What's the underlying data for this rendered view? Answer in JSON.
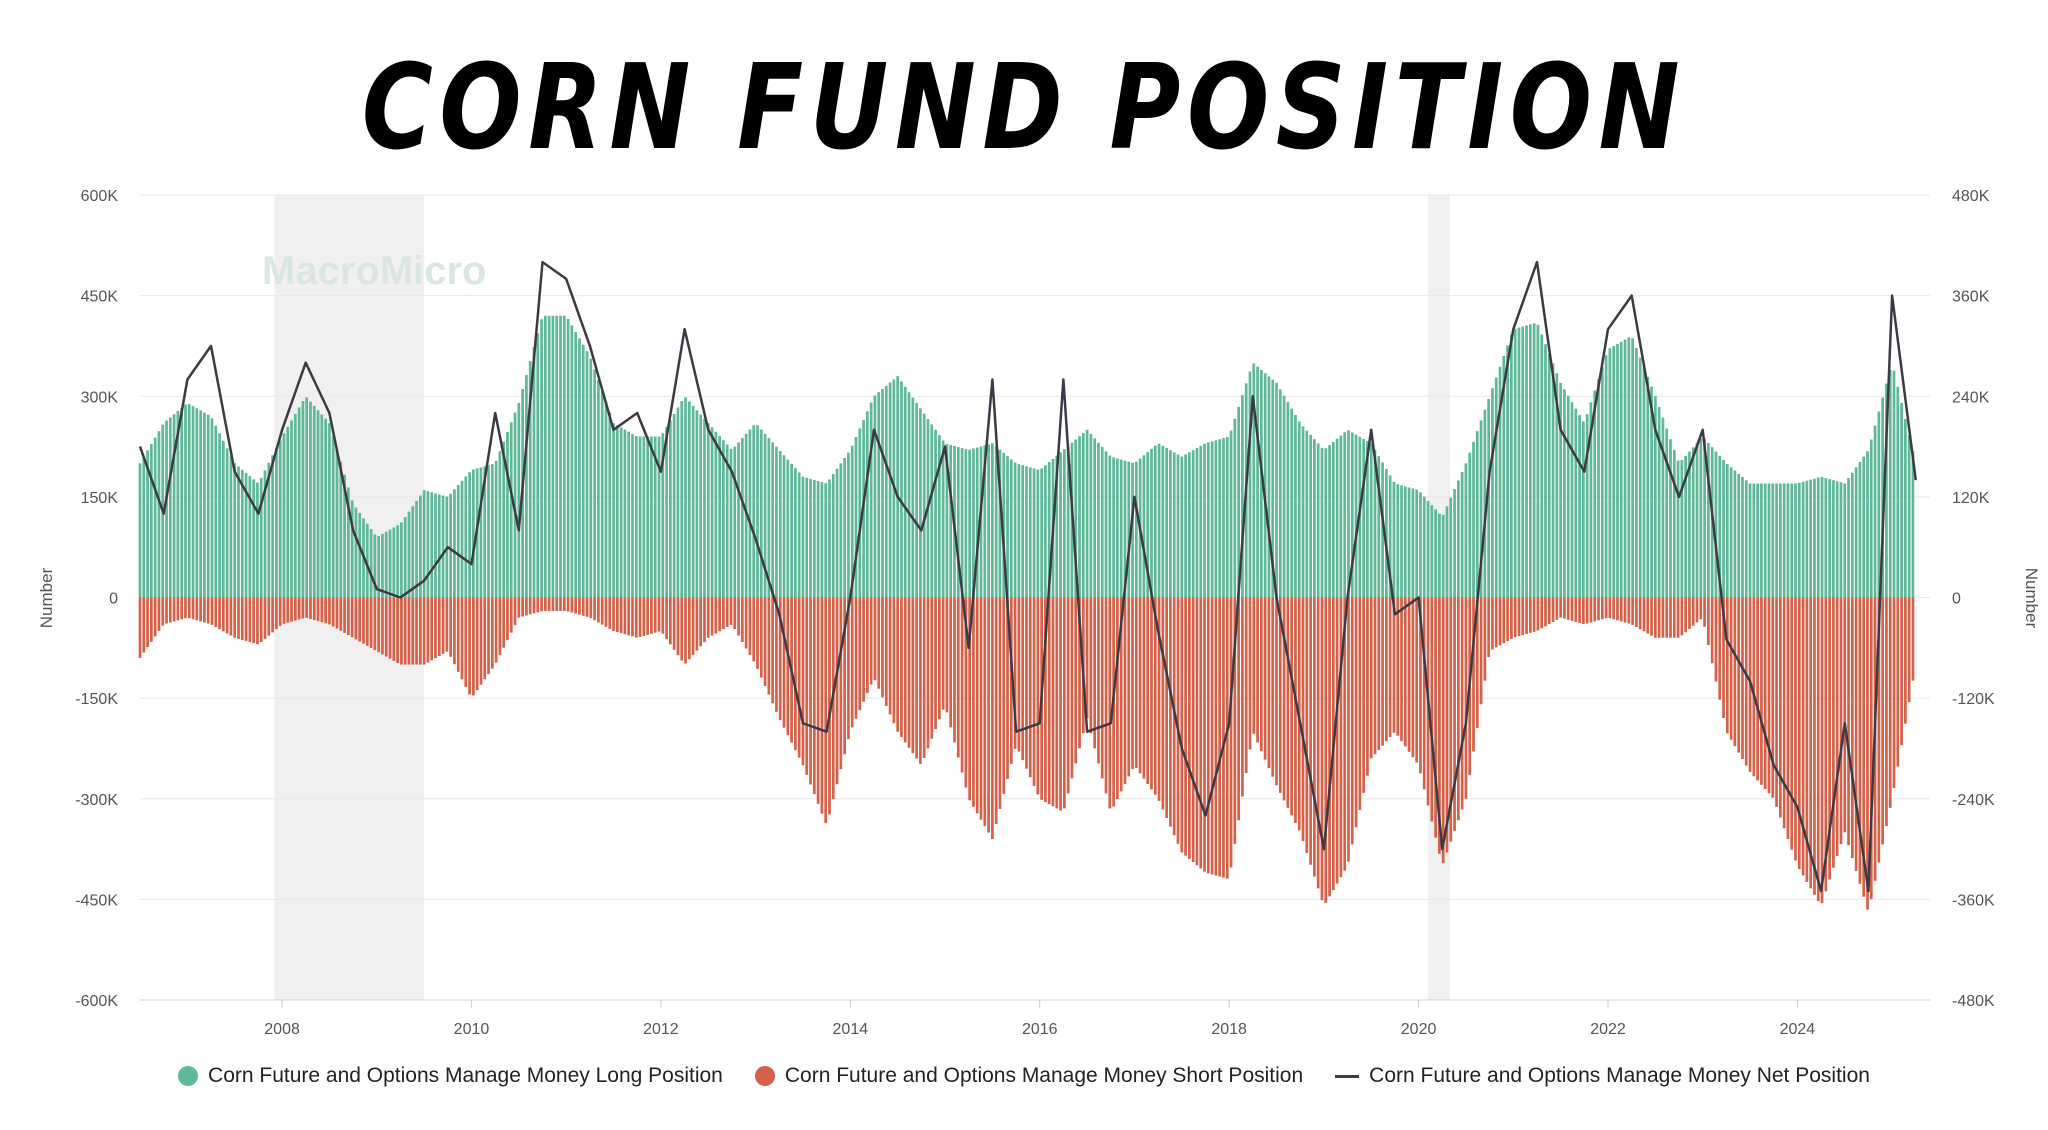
{
  "colors": {
    "long": "#5fb898",
    "short": "#d4624a",
    "net": "#3b3a45",
    "recession": "#f0f0f0",
    "grid": "#e8e8e8"
  },
  "chart_data": {
    "type": "bar",
    "title": "CORN FUND POSITION",
    "watermark": "MacroMicro",
    "ylabel_left": "Number",
    "ylabel_right": "Number",
    "ylim_left": [
      -600000,
      600000
    ],
    "ylim_right": [
      -480000,
      480000
    ],
    "yticks_left": [
      "600K",
      "450K",
      "300K",
      "150K",
      "0",
      "-150K",
      "-300K",
      "-450K",
      "-600K"
    ],
    "yticks_right": [
      "480K",
      "360K",
      "240K",
      "120K",
      "0",
      "-120K",
      "-240K",
      "-360K",
      "-480K"
    ],
    "xlim": [
      2006.5,
      2025.4
    ],
    "xticks": [
      "2008",
      "2010",
      "2012",
      "2014",
      "2016",
      "2018",
      "2020",
      "2022",
      "2024"
    ],
    "recessions": [
      [
        2007.92,
        2009.5
      ],
      [
        2020.1,
        2020.33
      ]
    ],
    "x": [
      2006.5,
      2006.75,
      2007.0,
      2007.25,
      2007.5,
      2007.75,
      2008.0,
      2008.25,
      2008.5,
      2008.75,
      2009.0,
      2009.25,
      2009.5,
      2009.75,
      2010.0,
      2010.25,
      2010.5,
      2010.75,
      2011.0,
      2011.25,
      2011.5,
      2011.75,
      2012.0,
      2012.25,
      2012.5,
      2012.75,
      2013.0,
      2013.25,
      2013.5,
      2013.75,
      2014.0,
      2014.25,
      2014.5,
      2014.75,
      2015.0,
      2015.25,
      2015.5,
      2015.75,
      2016.0,
      2016.25,
      2016.5,
      2016.75,
      2017.0,
      2017.25,
      2017.5,
      2017.75,
      2018.0,
      2018.25,
      2018.5,
      2018.75,
      2019.0,
      2019.25,
      2019.5,
      2019.75,
      2020.0,
      2020.25,
      2020.5,
      2020.75,
      2021.0,
      2021.25,
      2021.5,
      2021.75,
      2022.0,
      2022.25,
      2022.5,
      2022.75,
      2023.0,
      2023.25,
      2023.5,
      2023.75,
      2024.0,
      2024.25,
      2024.5,
      2024.75,
      2025.0,
      2025.25
    ],
    "series": [
      {
        "name": "Corn Future and Options Manage Money Long Position",
        "axis": "left",
        "values": [
          200000,
          260000,
          290000,
          270000,
          200000,
          170000,
          240000,
          300000,
          260000,
          140000,
          90000,
          110000,
          160000,
          150000,
          190000,
          200000,
          290000,
          420000,
          420000,
          360000,
          260000,
          240000,
          240000,
          300000,
          260000,
          220000,
          260000,
          220000,
          180000,
          170000,
          220000,
          300000,
          330000,
          280000,
          230000,
          220000,
          230000,
          200000,
          190000,
          220000,
          250000,
          210000,
          200000,
          230000,
          210000,
          230000,
          240000,
          350000,
          320000,
          260000,
          220000,
          250000,
          230000,
          170000,
          160000,
          120000,
          200000,
          300000,
          400000,
          410000,
          320000,
          260000,
          370000,
          390000,
          300000,
          200000,
          240000,
          200000,
          170000,
          170000,
          170000,
          180000,
          170000,
          220000,
          350000,
          200000
        ]
      },
      {
        "name": "Corn Future and Options Manage Money Short Position",
        "axis": "left",
        "values": [
          -90000,
          -40000,
          -30000,
          -40000,
          -60000,
          -70000,
          -40000,
          -30000,
          -40000,
          -60000,
          -80000,
          -100000,
          -100000,
          -80000,
          -150000,
          -100000,
          -30000,
          -20000,
          -20000,
          -30000,
          -50000,
          -60000,
          -50000,
          -100000,
          -60000,
          -40000,
          -100000,
          -180000,
          -250000,
          -340000,
          -200000,
          -120000,
          -200000,
          -250000,
          -160000,
          -300000,
          -360000,
          -220000,
          -300000,
          -320000,
          -180000,
          -320000,
          -250000,
          -300000,
          -380000,
          -410000,
          -420000,
          -200000,
          -280000,
          -350000,
          -460000,
          -400000,
          -240000,
          -200000,
          -250000,
          -400000,
          -300000,
          -80000,
          -60000,
          -50000,
          -30000,
          -40000,
          -30000,
          -40000,
          -60000,
          -60000,
          -30000,
          -200000,
          -260000,
          -300000,
          -400000,
          -460000,
          -350000,
          -470000,
          -300000,
          -100000
        ]
      },
      {
        "name": "Corn Future and Options Manage Money Net Position",
        "axis": "right",
        "type": "line",
        "values": [
          180000,
          100000,
          260000,
          300000,
          150000,
          100000,
          200000,
          280000,
          220000,
          80000,
          10000,
          0,
          20000,
          60000,
          40000,
          220000,
          80000,
          400000,
          380000,
          300000,
          200000,
          220000,
          150000,
          320000,
          200000,
          150000,
          70000,
          -20000,
          -150000,
          -160000,
          0,
          200000,
          120000,
          80000,
          180000,
          -60000,
          260000,
          -160000,
          -150000,
          260000,
          -160000,
          -150000,
          120000,
          -40000,
          -180000,
          -260000,
          -150000,
          240000,
          0,
          -150000,
          -300000,
          0,
          200000,
          -20000,
          0,
          -300000,
          -150000,
          150000,
          320000,
          400000,
          200000,
          150000,
          320000,
          360000,
          200000,
          120000,
          200000,
          -50000,
          -100000,
          -200000,
          -250000,
          -350000,
          -150000,
          -350000,
          360000,
          140000
        ]
      }
    ]
  },
  "legend": {
    "long": "Corn Future and Options Manage Money Long Position",
    "short": "Corn Future and Options Manage Money Short Position",
    "net": "Corn Future and Options Manage Money Net Position"
  }
}
